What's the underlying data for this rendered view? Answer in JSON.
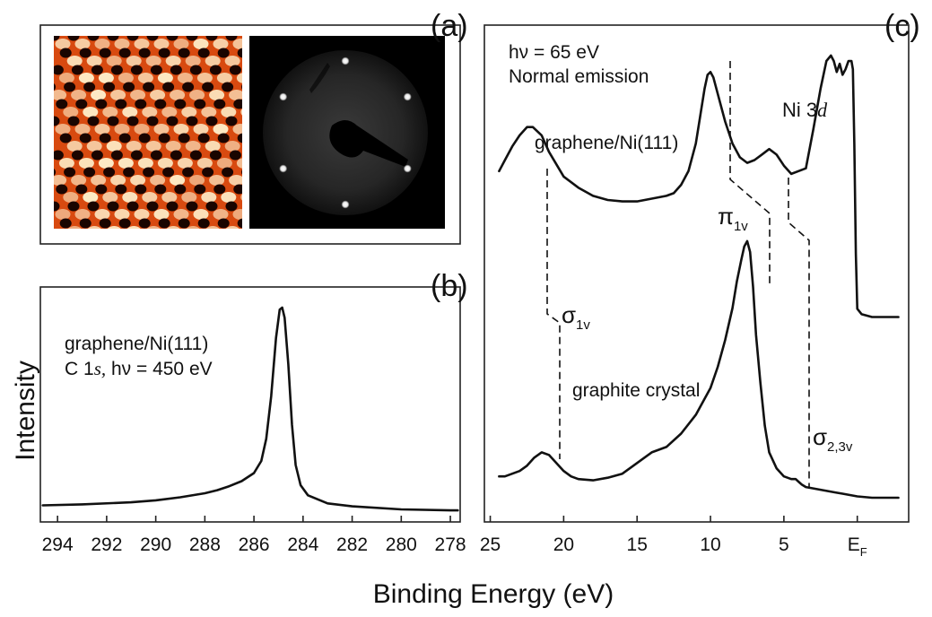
{
  "figure": {
    "xlabel": "Binding Energy (eV)",
    "ylabel": "Intensity",
    "colors": {
      "line": "#111111",
      "frame": "#222222",
      "stm_dark": "#1a0500",
      "stm_mid": "#cc2a00",
      "stm_light": "#fff4d0",
      "leed_bg": "#000000"
    }
  },
  "panels": {
    "a": {
      "label": "(a)",
      "images": [
        {
          "name": "stm-image",
          "kind": "hexagonal lattice, red-orange-white colormap"
        },
        {
          "name": "leed-pattern",
          "kind": "six hexagonal diffraction spots on dark background"
        }
      ]
    },
    "b": {
      "label": "(b)",
      "annotation_line1": "graphene/Ni(111)",
      "annotation_line2_prefix": "C 1",
      "annotation_line2_italic": "s,",
      "annotation_line2_suffix": " hν = 450 eV"
    },
    "c": {
      "label": "(c)",
      "info_line1": "hν = 65 eV",
      "info_line2": "Normal emission",
      "label_graphene": "graphene/Ni(111)",
      "label_graphite": "graphite crystal",
      "label_ni_prefix": "Ni 3",
      "label_ni_italic": "d",
      "label_pi": "π",
      "label_pi_sub": "1v",
      "label_sigma1": "σ",
      "label_sigma1_sub": "1v",
      "label_sigma23": "σ",
      "label_sigma23_sub": "2,3v",
      "tick_last": "E",
      "tick_last_sub": "F"
    }
  },
  "chart_data": [
    {
      "type": "line",
      "panel": "b",
      "xlabel": "Binding Energy (eV)",
      "ylabel": "Intensity",
      "xlim": [
        294.7,
        277.6
      ],
      "xticks": [
        294,
        292,
        290,
        288,
        286,
        284,
        282,
        280,
        278
      ],
      "series": [
        {
          "x": [
            294.6,
            293,
            291,
            290,
            289,
            288,
            287.5,
            287,
            286.5,
            286,
            285.7,
            285.5,
            285.3,
            285.1,
            284.95,
            284.85,
            284.75,
            284.6,
            284.45,
            284.3,
            284.1,
            283.8,
            283,
            282,
            280,
            278,
            277.7
          ],
          "y": [
            0.02,
            0.025,
            0.035,
            0.045,
            0.06,
            0.08,
            0.095,
            0.115,
            0.14,
            0.18,
            0.24,
            0.35,
            0.56,
            0.85,
            0.99,
            1.0,
            0.95,
            0.72,
            0.42,
            0.22,
            0.12,
            0.07,
            0.03,
            0.015,
            0.0,
            -0.005,
            -0.005
          ]
        }
      ]
    },
    {
      "type": "line",
      "panel": "c",
      "xlabel": "Binding Energy (eV)",
      "xlim": [
        25.4,
        -3.5
      ],
      "xticks": [
        25,
        20,
        15,
        10,
        5,
        0
      ],
      "xtick_labels": [
        "25",
        "20",
        "15",
        "10",
        "5",
        "E_F"
      ],
      "series": [
        {
          "name": "graphene/Ni(111)",
          "x": [
            24.4,
            24,
            23.5,
            23,
            22.5,
            22.1,
            21.5,
            21,
            20,
            19,
            18,
            17,
            16,
            15,
            14,
            13,
            12.5,
            12,
            11.5,
            11,
            10.7,
            10.4,
            10.2,
            10.0,
            9.8,
            9.5,
            9,
            8.5,
            8,
            7.5,
            7,
            6.5,
            6,
            5.5,
            5,
            4.5,
            4,
            3.5,
            3,
            2.5,
            2.1,
            1.8,
            1.6,
            1.4,
            1.2,
            1.0,
            0.8,
            0.6,
            0.4,
            0.3,
            0.2,
            0.1,
            0.0,
            -0.3,
            -1,
            -2,
            -2.8
          ],
          "y": [
            0.6,
            0.64,
            0.69,
            0.73,
            0.76,
            0.76,
            0.73,
            0.67,
            0.58,
            0.54,
            0.51,
            0.495,
            0.49,
            0.49,
            0.5,
            0.51,
            0.52,
            0.55,
            0.6,
            0.7,
            0.8,
            0.9,
            0.95,
            0.96,
            0.94,
            0.88,
            0.78,
            0.7,
            0.65,
            0.63,
            0.64,
            0.66,
            0.68,
            0.66,
            0.62,
            0.59,
            0.6,
            0.61,
            0.75,
            0.9,
            1.0,
            1.02,
            1.0,
            0.96,
            0.99,
            0.95,
            0.97,
            1.0,
            1.0,
            0.97,
            0.7,
            0.3,
            0.1,
            0.08,
            0.07,
            0.07,
            0.07
          ]
        },
        {
          "name": "graphite crystal",
          "x": [
            24.4,
            24,
            23.5,
            23,
            22.5,
            22,
            21.5,
            21,
            20.5,
            20,
            19.5,
            19,
            18,
            17,
            16,
            15,
            14,
            13,
            12,
            11,
            10,
            9.5,
            9,
            8.5,
            8.2,
            7.9,
            7.7,
            7.5,
            7.3,
            7.1,
            6.9,
            6.6,
            6.3,
            6,
            5.5,
            5,
            4.5,
            4.2,
            4,
            3.8,
            3.5,
            3,
            2.5,
            2,
            1.5,
            1,
            0.5,
            0,
            -1,
            -2,
            -2.8
          ],
          "y": [
            0.09,
            0.09,
            0.1,
            0.11,
            0.13,
            0.16,
            0.18,
            0.17,
            0.14,
            0.11,
            0.09,
            0.08,
            0.075,
            0.085,
            0.1,
            0.14,
            0.18,
            0.2,
            0.25,
            0.32,
            0.42,
            0.5,
            0.6,
            0.72,
            0.82,
            0.9,
            0.95,
            0.97,
            0.93,
            0.8,
            0.62,
            0.44,
            0.28,
            0.18,
            0.12,
            0.09,
            0.08,
            0.08,
            0.07,
            0.06,
            0.05,
            0.045,
            0.04,
            0.035,
            0.03,
            0.025,
            0.02,
            0.015,
            0.01,
            0.01,
            0.01
          ]
        }
      ]
    }
  ]
}
